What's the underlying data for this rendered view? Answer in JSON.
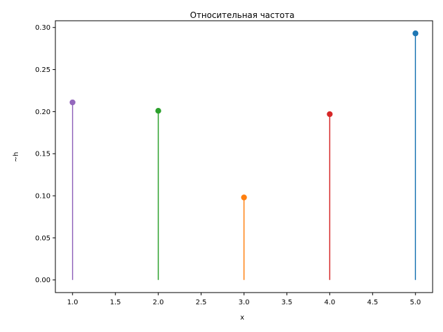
{
  "chart_data": {
    "type": "stem",
    "title": "Относительная частота",
    "xlabel": "x",
    "ylabel": "~h",
    "xlim": [
      0.8,
      5.2
    ],
    "ylim": [
      -0.015,
      0.308
    ],
    "xticks": [
      "1.0",
      "1.5",
      "2.0",
      "2.5",
      "3.0",
      "3.5",
      "4.0",
      "4.5",
      "5.0"
    ],
    "yticks": [
      "0.00",
      "0.05",
      "0.10",
      "0.15",
      "0.20",
      "0.25",
      "0.30"
    ],
    "grid": false,
    "points": [
      {
        "x": 1.0,
        "y": 0.211,
        "color": "#9467bd"
      },
      {
        "x": 2.0,
        "y": 0.201,
        "color": "#2ca02c"
      },
      {
        "x": 3.0,
        "y": 0.098,
        "color": "#ff7f0e"
      },
      {
        "x": 4.0,
        "y": 0.197,
        "color": "#d62728"
      },
      {
        "x": 5.0,
        "y": 0.293,
        "color": "#1f77b4"
      }
    ]
  }
}
